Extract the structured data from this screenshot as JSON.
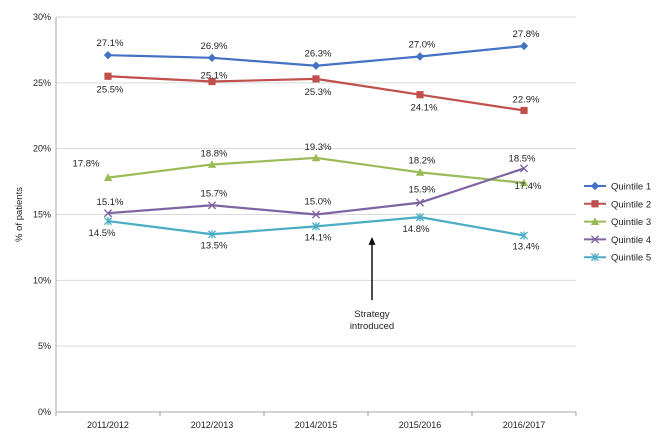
{
  "chart_data": {
    "type": "line",
    "categories": [
      "2011/2012",
      "2012/2013",
      "2014/2015",
      "2015/2016",
      "2016/2017"
    ],
    "ylabel": "% of patients",
    "ylim": [
      0,
      30
    ],
    "yticks": [
      0,
      5,
      10,
      15,
      20,
      25,
      30
    ],
    "ytick_labels": [
      "0%",
      "5%",
      "10%",
      "15%",
      "20%",
      "25%",
      "30%"
    ],
    "grid": "horizontal",
    "legend_position": "right",
    "series": [
      {
        "name": "Quintile 1",
        "values": [
          27.1,
          26.9,
          26.3,
          27.0,
          27.8
        ],
        "labels": [
          "27.1%",
          "26.9%",
          "26.3%",
          "27.0%",
          "27.8%"
        ],
        "color": "#4472C4",
        "marker": "diamond"
      },
      {
        "name": "Quintile 2",
        "values": [
          25.5,
          25.1,
          25.3,
          24.1,
          22.9
        ],
        "labels": [
          "25.5%",
          "25.1%",
          "25.3%",
          "24.1%",
          "22.9%"
        ],
        "color": "#C0504D",
        "marker": "square"
      },
      {
        "name": "Quintile 3",
        "values": [
          17.8,
          18.8,
          19.3,
          18.2,
          17.4
        ],
        "labels": [
          "17.8%",
          "18.8%",
          "19.3%",
          "18.2%",
          "17.4%"
        ],
        "color": "#9BBB59",
        "marker": "triangle"
      },
      {
        "name": "Quintile 4",
        "values": [
          15.1,
          15.7,
          15.0,
          15.9,
          18.5
        ],
        "labels": [
          "15.1%",
          "15.7%",
          "15.0%",
          "15.9%",
          "18.5%"
        ],
        "color": "#8064A2",
        "marker": "x"
      },
      {
        "name": "Quintile 5",
        "values": [
          14.5,
          13.5,
          14.1,
          14.8,
          13.4
        ],
        "labels": [
          "14.5%",
          "13.5%",
          "14.1%",
          "14.8%",
          "13.4%"
        ],
        "color": "#4BACC6",
        "marker": "star"
      }
    ],
    "annotation": {
      "lines": [
        "Strategy",
        "introduced"
      ],
      "x_between": [
        2,
        3
      ],
      "arrow_from_y": 8.5,
      "arrow_to_y": 13.3
    }
  }
}
